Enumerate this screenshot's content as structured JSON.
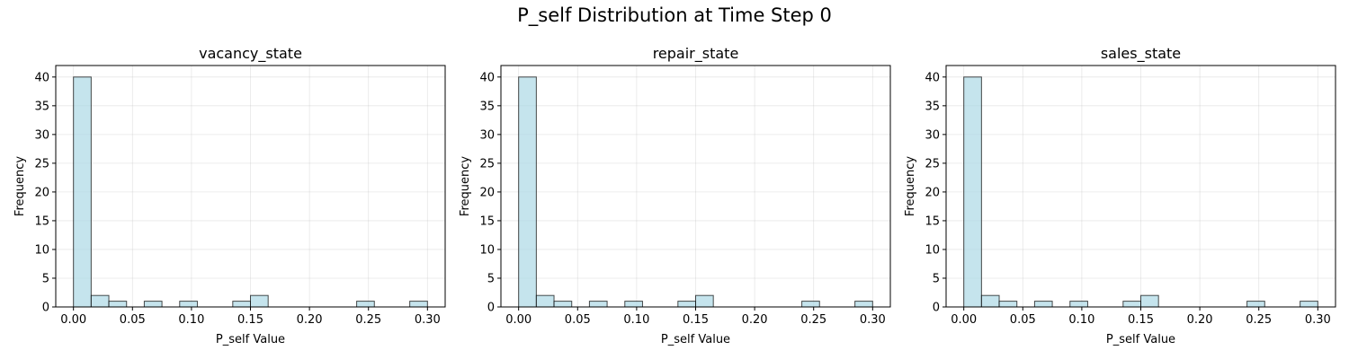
{
  "figure": {
    "title": "P_self Distribution at Time Step 0"
  },
  "style": {
    "bar_fill": "#add8e6",
    "bar_fill_opacity": 0.7,
    "bar_edge": "#000000"
  },
  "chart_data": [
    {
      "type": "bar",
      "title": "vacancy_state",
      "xlabel": "P_self Value",
      "ylabel": "Frequency",
      "bin_width": 0.015,
      "bins": [
        0.0,
        0.015,
        0.03,
        0.045,
        0.06,
        0.075,
        0.09,
        0.105,
        0.12,
        0.135,
        0.15,
        0.165,
        0.18,
        0.195,
        0.21,
        0.225,
        0.24,
        0.255,
        0.27,
        0.285
      ],
      "values": [
        40,
        2,
        1,
        0,
        1,
        0,
        1,
        0,
        0,
        1,
        2,
        0,
        0,
        0,
        0,
        0,
        1,
        0,
        0,
        1
      ],
      "xlim": [
        -0.015,
        0.315
      ],
      "ylim": [
        0,
        42
      ],
      "xticks": [
        0.0,
        0.05,
        0.1,
        0.15,
        0.2,
        0.25,
        0.3
      ],
      "xtick_labels": [
        "0.00",
        "0.05",
        "0.10",
        "0.15",
        "0.20",
        "0.25",
        "0.30"
      ],
      "yticks": [
        0,
        5,
        10,
        15,
        20,
        25,
        30,
        35,
        40
      ],
      "ytick_labels": [
        "0",
        "5",
        "10",
        "15",
        "20",
        "25",
        "30",
        "35",
        "40"
      ],
      "grid": true
    },
    {
      "type": "bar",
      "title": "repair_state",
      "xlabel": "P_self Value",
      "ylabel": "Frequency",
      "bin_width": 0.015,
      "bins": [
        0.0,
        0.015,
        0.03,
        0.045,
        0.06,
        0.075,
        0.09,
        0.105,
        0.12,
        0.135,
        0.15,
        0.165,
        0.18,
        0.195,
        0.21,
        0.225,
        0.24,
        0.255,
        0.27,
        0.285
      ],
      "values": [
        40,
        2,
        1,
        0,
        1,
        0,
        1,
        0,
        0,
        1,
        2,
        0,
        0,
        0,
        0,
        0,
        1,
        0,
        0,
        1
      ],
      "xlim": [
        -0.015,
        0.315
      ],
      "ylim": [
        0,
        42
      ],
      "xticks": [
        0.0,
        0.05,
        0.1,
        0.15,
        0.2,
        0.25,
        0.3
      ],
      "xtick_labels": [
        "0.00",
        "0.05",
        "0.10",
        "0.15",
        "0.20",
        "0.25",
        "0.30"
      ],
      "yticks": [
        0,
        5,
        10,
        15,
        20,
        25,
        30,
        35,
        40
      ],
      "ytick_labels": [
        "0",
        "5",
        "10",
        "15",
        "20",
        "25",
        "30",
        "35",
        "40"
      ],
      "grid": true
    },
    {
      "type": "bar",
      "title": "sales_state",
      "xlabel": "P_self Value",
      "ylabel": "Frequency",
      "bin_width": 0.015,
      "bins": [
        0.0,
        0.015,
        0.03,
        0.045,
        0.06,
        0.075,
        0.09,
        0.105,
        0.12,
        0.135,
        0.15,
        0.165,
        0.18,
        0.195,
        0.21,
        0.225,
        0.24,
        0.255,
        0.27,
        0.285
      ],
      "values": [
        40,
        2,
        1,
        0,
        1,
        0,
        1,
        0,
        0,
        1,
        2,
        0,
        0,
        0,
        0,
        0,
        1,
        0,
        0,
        1
      ],
      "xlim": [
        -0.015,
        0.315
      ],
      "ylim": [
        0,
        42
      ],
      "xticks": [
        0.0,
        0.05,
        0.1,
        0.15,
        0.2,
        0.25,
        0.3
      ],
      "xtick_labels": [
        "0.00",
        "0.05",
        "0.10",
        "0.15",
        "0.20",
        "0.25",
        "0.30"
      ],
      "yticks": [
        0,
        5,
        10,
        15,
        20,
        25,
        30,
        35,
        40
      ],
      "ytick_labels": [
        "0",
        "5",
        "10",
        "15",
        "20",
        "25",
        "30",
        "35",
        "40"
      ],
      "grid": true
    }
  ]
}
